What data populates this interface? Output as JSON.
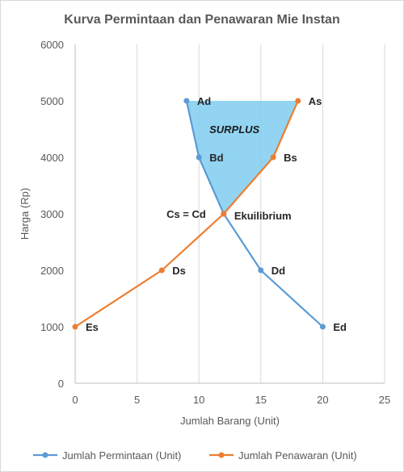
{
  "chart_data": {
    "type": "line",
    "title": "Kurva Permintaan dan Penawaran Mie Instan",
    "xlabel": "Jumlah Barang (Unit)",
    "ylabel": "Harga (Rp)",
    "xlim": [
      0,
      25
    ],
    "ylim": [
      0,
      6000
    ],
    "xticks": [
      0,
      5,
      10,
      15,
      20,
      25
    ],
    "yticks": [
      0,
      1000,
      2000,
      3000,
      4000,
      5000,
      6000
    ],
    "grid": "vertical",
    "legend_position": "bottom",
    "series": [
      {
        "name": "Jumlah Permintaan (Unit)",
        "color": "#5b9bd5",
        "points": [
          {
            "x": 9,
            "y": 5000,
            "label": "Ad"
          },
          {
            "x": 10,
            "y": 4000,
            "label": "Bd"
          },
          {
            "x": 12,
            "y": 3000,
            "label": ""
          },
          {
            "x": 15,
            "y": 2000,
            "label": "Dd"
          },
          {
            "x": 20,
            "y": 1000,
            "label": "Ed"
          }
        ]
      },
      {
        "name": "Jumlah Penawaran (Unit)",
        "color": "#ed7d31",
        "points": [
          {
            "x": 0,
            "y": 1000,
            "label": "Es"
          },
          {
            "x": 7,
            "y": 2000,
            "label": "Ds"
          },
          {
            "x": 12,
            "y": 3000,
            "label": ""
          },
          {
            "x": 16,
            "y": 4000,
            "label": "Bs"
          },
          {
            "x": 18,
            "y": 5000,
            "label": "As"
          }
        ]
      }
    ],
    "annotations": {
      "surplus": "SURPLUS",
      "surplus_color": "#7fcdf0",
      "equilibrium_left": "Cs = Cd",
      "equilibrium_right": "Ekuilibrium"
    }
  }
}
